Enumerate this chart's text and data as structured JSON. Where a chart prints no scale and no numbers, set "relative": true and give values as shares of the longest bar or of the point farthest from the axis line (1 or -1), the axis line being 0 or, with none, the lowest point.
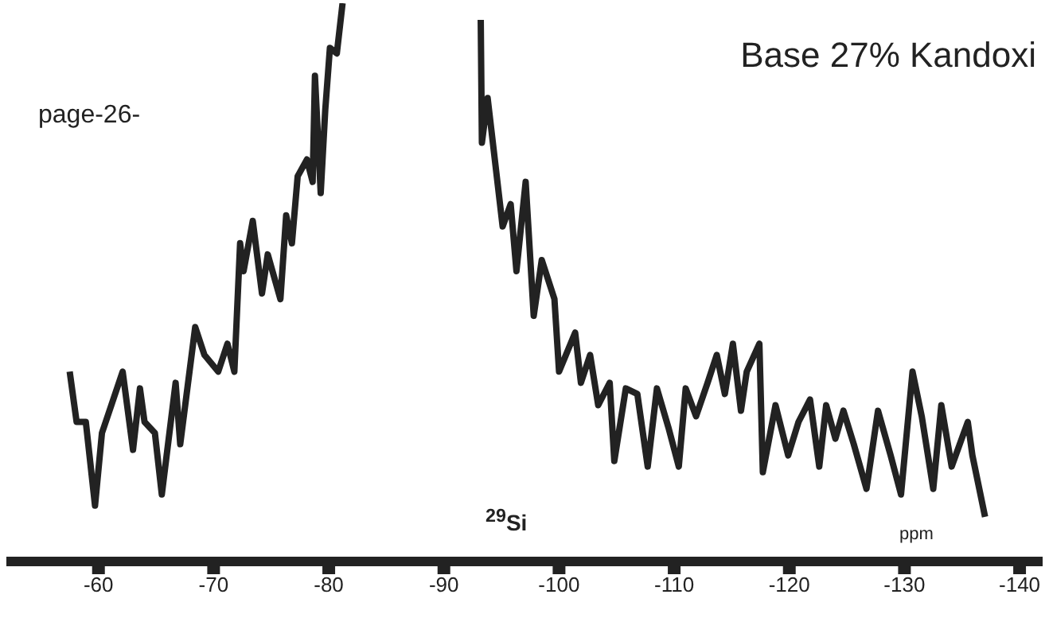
{
  "chart_data": {
    "type": "line",
    "title": "Base 27% Kandoxi",
    "xlabel": "ppm",
    "annotations": [
      "page-26-",
      "$^{29}$Si"
    ],
    "relative": true,
    "color": "#222222",
    "xlim": [
      -52,
      -142
    ],
    "xticks": [
      -60,
      -70,
      -80,
      -90,
      -100,
      -110,
      -120,
      -130,
      -140
    ],
    "x": [
      -57.5,
      -58.1,
      -58.9,
      -59.7,
      -60.3,
      -62.1,
      -63.0,
      -63.6,
      -64.0,
      -64.9,
      -65.5,
      -66.7,
      -67.1,
      -68.4,
      -69.2,
      -70.4,
      -71.2,
      -71.8,
      -72.3,
      -72.6,
      -73.4,
      -74.2,
      -74.7,
      -75.8,
      -76.3,
      -76.8,
      -77.3,
      -78.1,
      -78.6,
      -78.8,
      -79.3,
      -79.7,
      -80.1,
      -80.7,
      -81.2,
      -87.0,
      -93.2,
      -93.3,
      -93.8,
      -95.1,
      -95.8,
      -96.3,
      -97.1,
      -97.8,
      -98.5,
      -99.6,
      -100.0,
      -101.4,
      -101.9,
      -102.7,
      -103.4,
      -104.4,
      -104.8,
      -105.8,
      -106.8,
      -107.7,
      -108.5,
      -109.5,
      -110.4,
      -111.0,
      -111.9,
      -112.9,
      -113.7,
      -114.4,
      -115.1,
      -115.8,
      -116.3,
      -117.4,
      -117.7,
      -118.8,
      -119.9,
      -120.8,
      -121.8,
      -122.6,
      -123.2,
      -124.0,
      -124.7,
      -125.6,
      -126.7,
      -127.7,
      -128.8,
      -129.7,
      -130.7,
      -131.5,
      -132.5,
      -133.2,
      -134.1,
      -135.5,
      -135.9,
      -137.0
    ],
    "values": [
      0.34,
      0.25,
      0.25,
      0.1,
      0.23,
      0.34,
      0.2,
      0.31,
      0.25,
      0.23,
      0.12,
      0.32,
      0.21,
      0.42,
      0.37,
      0.34,
      0.39,
      0.34,
      0.57,
      0.52,
      0.61,
      0.48,
      0.55,
      0.47,
      0.62,
      0.57,
      0.69,
      0.72,
      0.68,
      0.87,
      0.66,
      0.81,
      0.92,
      0.91,
      1,
      null,
      0.97,
      0.75,
      0.83,
      0.6,
      0.64,
      0.52,
      0.68,
      0.44,
      0.54,
      0.47,
      0.34,
      0.41,
      0.32,
      0.37,
      0.28,
      0.32,
      0.18,
      0.31,
      0.3,
      0.17,
      0.31,
      0.24,
      0.17,
      0.31,
      0.26,
      0.32,
      0.37,
      0.3,
      0.39,
      0.27,
      0.34,
      0.39,
      0.16,
      0.28,
      0.19,
      0.25,
      0.29,
      0.17,
      0.28,
      0.22,
      0.27,
      0.21,
      0.13,
      0.27,
      0.19,
      0.12,
      0.34,
      0.26,
      0.13,
      0.28,
      0.17,
      0.25,
      0.19,
      0.08
    ]
  }
}
